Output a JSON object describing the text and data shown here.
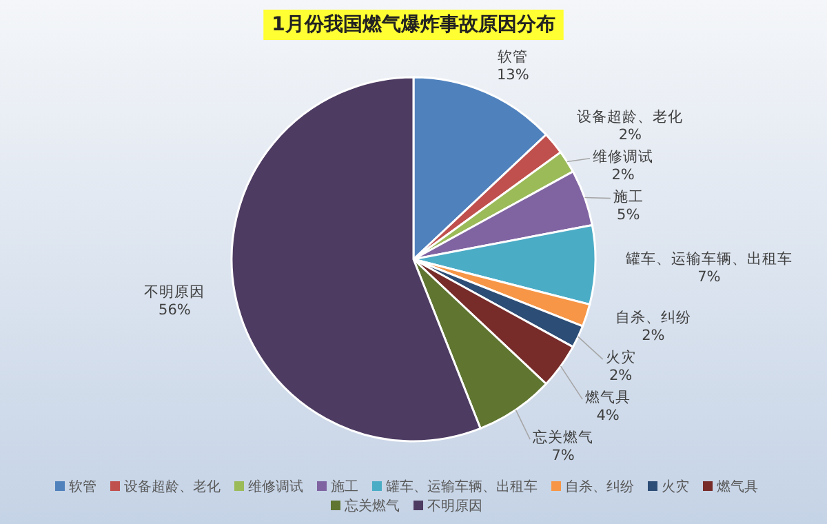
{
  "chart_data": {
    "type": "pie",
    "title": "1月份我国燃气爆炸事故原因分布",
    "categories": [
      "软管",
      "设备超龄、老化",
      "维修调试",
      "施工",
      "罐车、运输车辆、出租车",
      "自杀、纠纷",
      "火灾",
      "燃气具",
      "忘关燃气",
      "不明原因"
    ],
    "values": [
      13,
      2,
      2,
      5,
      7,
      2,
      2,
      4,
      7,
      56
    ],
    "colors": [
      "#4f81bd",
      "#c0504d",
      "#9bbb59",
      "#8064a2",
      "#4bacc6",
      "#f79646",
      "#2c4d75",
      "#772c2a",
      "#5f7530",
      "#4d3b62"
    ],
    "value_labels": [
      "13%",
      "2%",
      "2%",
      "5%",
      "7%",
      "2%",
      "2%",
      "4%",
      "7%",
      "56%"
    ],
    "legend": "bottom"
  }
}
